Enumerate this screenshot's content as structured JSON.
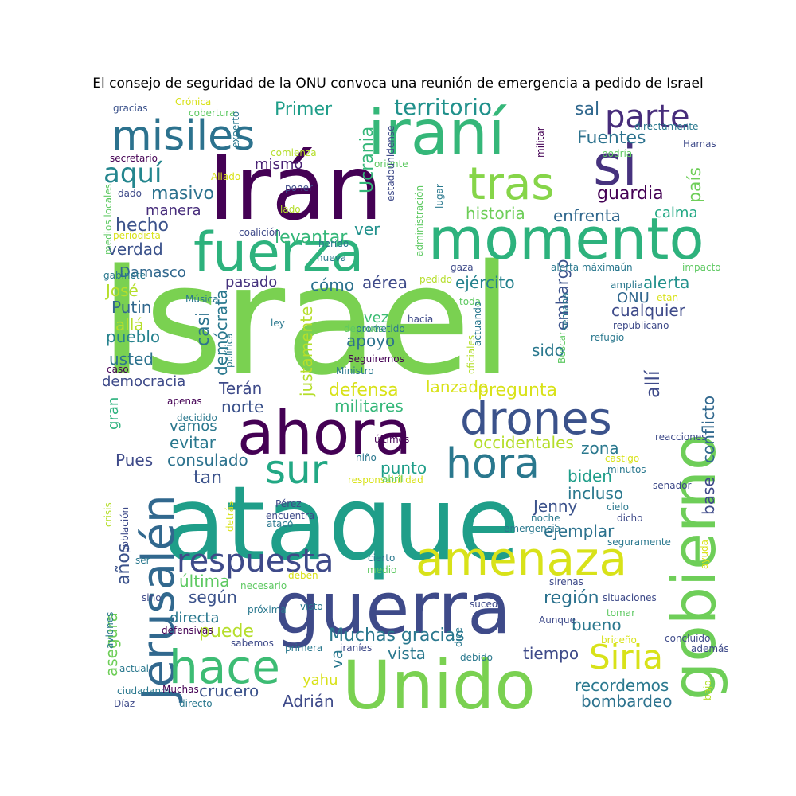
{
  "chart_data": {
    "type": "wordcloud",
    "title": "El consejo de seguridad de la ONU convoca una reunión de emergencia a pedido de Israel",
    "words": [
      {
        "text": "Israel",
        "color": "#7ad151"
      },
      {
        "text": "ataque",
        "color": "#1f9e89"
      },
      {
        "text": "Irán",
        "color": "#440154"
      },
      {
        "text": "iraní",
        "color": "#35b779"
      },
      {
        "text": "momento",
        "color": "#2db27d"
      },
      {
        "text": "Unido",
        "color": "#7ad151"
      },
      {
        "text": "guerra",
        "color": "#3e4a89"
      },
      {
        "text": "gobierno",
        "color": "#6ece58"
      },
      {
        "text": "ahora",
        "color": "#440154"
      },
      {
        "text": "fuerza",
        "color": "#2db27d"
      },
      {
        "text": "amenaza",
        "color": "#d8e219"
      },
      {
        "text": "drones",
        "color": "#3b528b"
      },
      {
        "text": "Jerusalén",
        "color": "#31688e"
      },
      {
        "text": "hace",
        "color": "#3dbc74"
      },
      {
        "text": "misiles",
        "color": "#2c728e"
      },
      {
        "text": "si",
        "color": "#46327e"
      },
      {
        "text": "tras",
        "color": "#86d549"
      },
      {
        "text": "sur",
        "color": "#22a884"
      },
      {
        "text": "hora",
        "color": "#2a788e"
      },
      {
        "text": "respuesta",
        "color": "#3e4a89"
      },
      {
        "text": "Siria",
        "color": "#d8e219"
      },
      {
        "text": "parte",
        "color": "#472d7b"
      },
      {
        "text": "aquí",
        "color": "#24868e"
      },
      {
        "text": "territorio",
        "color": "#21918c"
      },
      {
        "text": "Primer",
        "color": "#1f9e89"
      },
      {
        "text": "Ucrania",
        "color": "#35b779"
      },
      {
        "text": "Fuentes",
        "color": "#2c728e"
      },
      {
        "text": "país",
        "color": "#6ece58"
      },
      {
        "text": "sal",
        "color": "#31688e"
      },
      {
        "text": "mismo",
        "color": "#482173"
      },
      {
        "text": "masivo",
        "color": "#2c728e"
      },
      {
        "text": "guardia",
        "color": "#440154"
      },
      {
        "text": "manera",
        "color": "#472d7b"
      },
      {
        "text": "hecho",
        "color": "#3b528b"
      },
      {
        "text": "historia",
        "color": "#6ece58"
      },
      {
        "text": "enfrenta",
        "color": "#31688e"
      },
      {
        "text": "calma",
        "color": "#22a884"
      },
      {
        "text": "levantar",
        "color": "#35b779"
      },
      {
        "text": "ver",
        "color": "#21918c"
      },
      {
        "text": "verdad",
        "color": "#3b528b"
      },
      {
        "text": "Damasco",
        "color": "#31688e"
      },
      {
        "text": "pasado",
        "color": "#46327e"
      },
      {
        "text": "cómo",
        "color": "#2c728e"
      },
      {
        "text": "aérea",
        "color": "#3e4a89"
      },
      {
        "text": "ejército",
        "color": "#26828e"
      },
      {
        "text": "alerta",
        "color": "#21918c"
      },
      {
        "text": "José",
        "color": "#b5de2b"
      },
      {
        "text": "Putin",
        "color": "#31688e"
      },
      {
        "text": "allá",
        "color": "#b5de2b"
      },
      {
        "text": "pueblo",
        "color": "#26828e"
      },
      {
        "text": "usted",
        "color": "#2c728e"
      },
      {
        "text": "democracia",
        "color": "#3e4a89"
      },
      {
        "text": "casi",
        "color": "#2c728e"
      },
      {
        "text": "demócrata",
        "color": "#2a788e"
      },
      {
        "text": "justamente",
        "color": "#b5de2b"
      },
      {
        "text": "vez",
        "color": "#3dbc74"
      },
      {
        "text": "apoyo",
        "color": "#2c728e"
      },
      {
        "text": "ONU",
        "color": "#31688e"
      },
      {
        "text": "cualquier",
        "color": "#3e4a89"
      },
      {
        "text": "embargo",
        "color": "#3b528b"
      },
      {
        "text": "sido",
        "color": "#2a788e"
      },
      {
        "text": "allí",
        "color": "#3e4a89"
      },
      {
        "text": "Terán",
        "color": "#3e4a89"
      },
      {
        "text": "defensa",
        "color": "#d8e219"
      },
      {
        "text": "lanzado",
        "color": "#d8e219"
      },
      {
        "text": "pregunta",
        "color": "#d8e219"
      },
      {
        "text": "militares",
        "color": "#35b779"
      },
      {
        "text": "norte",
        "color": "#3b528b"
      },
      {
        "text": "gran",
        "color": "#2db27d"
      },
      {
        "text": "vamos",
        "color": "#2a788e"
      },
      {
        "text": "evitar",
        "color": "#2a788e"
      },
      {
        "text": "occidentales",
        "color": "#b5de2b"
      },
      {
        "text": "zona",
        "color": "#2a788e"
      },
      {
        "text": "conflicto",
        "color": "#31688e"
      },
      {
        "text": "base",
        "color": "#3e4a89"
      },
      {
        "text": "Pues",
        "color": "#3e4a89"
      },
      {
        "text": "consulado",
        "color": "#2c728e"
      },
      {
        "text": "tan",
        "color": "#3b528b"
      },
      {
        "text": "punto",
        "color": "#1f9e89"
      },
      {
        "text": "biden",
        "color": "#1f9e89"
      },
      {
        "text": "incluso",
        "color": "#2a788e"
      },
      {
        "text": "Jenny",
        "color": "#3b528b"
      },
      {
        "text": "ejemplar",
        "color": "#2c728e"
      },
      {
        "text": "años",
        "color": "#3b528b"
      },
      {
        "text": "última",
        "color": "#5ec962"
      },
      {
        "text": "según",
        "color": "#3b528b"
      },
      {
        "text": "región",
        "color": "#2c728e"
      },
      {
        "text": "directa",
        "color": "#2a788e"
      },
      {
        "text": "puede",
        "color": "#b5de2b"
      },
      {
        "text": "bueno",
        "color": "#2a788e"
      },
      {
        "text": "asegura",
        "color": "#6ece58"
      },
      {
        "text": "Muchas gracias",
        "color": "#2a788e"
      },
      {
        "text": "va",
        "color": "#2a788e"
      },
      {
        "text": "vista",
        "color": "#2a788e"
      },
      {
        "text": "tiempo",
        "color": "#3e4a89"
      },
      {
        "text": "crucero",
        "color": "#3b528b"
      },
      {
        "text": "yahu",
        "color": "#d8e219"
      },
      {
        "text": "recordemos",
        "color": "#2a788e"
      },
      {
        "text": "Adrián",
        "color": "#3e4a89"
      },
      {
        "text": "bombardeo",
        "color": "#2c728e"
      }
    ],
    "small_words": [
      "gracias",
      "Crónica",
      "cobertura",
      "experto",
      "comienza",
      "Aliado",
      "secretario",
      "dado",
      "poner",
      "lado",
      "oriente",
      "estadounidense",
      "administración",
      "lugar",
      "militar",
      "directamente",
      "podría",
      "Hamas",
      "medios locales",
      "periodista",
      "coalición",
      "herido",
      "nueva",
      "gaza",
      "alerta máxima",
      "aún",
      "impacto",
      "gabinete",
      "pedido",
      "amplia",
      "etan",
      "Música",
      "ley",
      "toda",
      "hacia",
      "semana",
      "republicano",
      "refugio",
      "después",
      "prometido",
      "política",
      "actuando",
      "Buscar",
      "Seguiremos",
      "Ministro",
      "oficiales",
      "caso",
      "apenas",
      "decidido",
      "últimos",
      "niño",
      "reacciones",
      "crisis",
      "responsabilidad",
      "abril",
      "castigo",
      "minutos",
      "senador",
      "Pérez",
      "encuentra",
      "atacó",
      "cielo",
      "dicho",
      "emergencia",
      "noche",
      "detrás",
      "población",
      "seguramente",
      "ser",
      "cierto",
      "medio",
      "ayuda",
      "deben",
      "necesario",
      "sino",
      "próxima",
      "visto",
      "sirenas",
      "situaciones",
      "sucede",
      "tomar",
      "aviones",
      "defensivas",
      "Aunque",
      "dice",
      "sabemos",
      "primera",
      "iraníes",
      "briceño",
      "concluido",
      "además",
      "actual",
      "debido",
      "bajo",
      "ciudadanos",
      "Muchas",
      "Díaz",
      "directo",
      "Revolucionaria"
    ]
  }
}
